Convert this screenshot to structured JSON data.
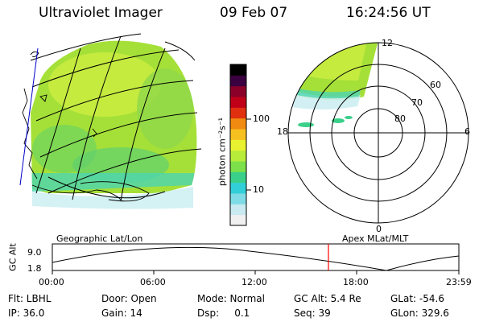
{
  "header": {
    "title": "Ultraviolet Imager",
    "date": "09 Feb 07",
    "time": "16:24:56 UT"
  },
  "colorbar": {
    "label": "photon cm⁻²s⁻¹",
    "ticks": [
      "100",
      "10"
    ],
    "colors": [
      "#f0f0f0",
      "#c8eaf0",
      "#7fdce6",
      "#33cfd8",
      "#3ad08a",
      "#7be04a",
      "#b8ec3a",
      "#e8f230",
      "#f6c020",
      "#f08a10",
      "#e03010",
      "#c00018",
      "#8a0028",
      "#3a0040",
      "#000000"
    ]
  },
  "polar": {
    "mlt_labels": [
      "12",
      "18",
      "6",
      "0"
    ],
    "lat_labels": [
      "60",
      "70",
      "80"
    ]
  },
  "timeline": {
    "ylabel": "GC Alt",
    "y_ticks": [
      "9.0",
      "1.8"
    ],
    "left_title": "Geographic Lat/Lon",
    "right_title": "Apex  MLat/MLT",
    "x_ticks": [
      "00:00",
      "06:00",
      "12:00",
      "18:00",
      "23:59"
    ],
    "marker_color": "#ff0000"
  },
  "info": {
    "row1": [
      "Flt: LBHL",
      "Door: Open",
      "Mode: Normal",
      "GC Alt: 5.4 Re",
      "GLat: -54.6"
    ],
    "row2": [
      "IP: 36.0",
      "Gain: 14",
      "Dsp:     0.1",
      "Seq: 39",
      "GLon: 329.6"
    ]
  }
}
